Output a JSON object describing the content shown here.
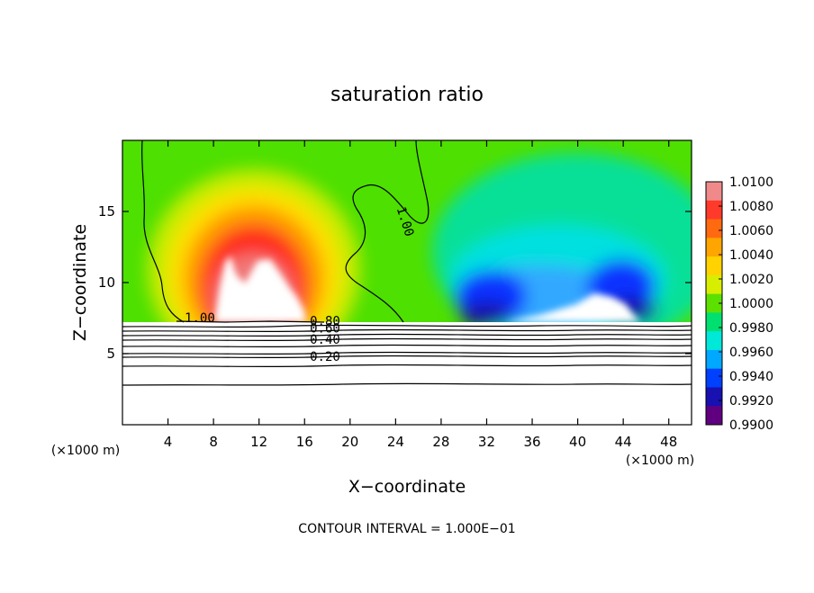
{
  "chart_data": {
    "type": "heatmap",
    "title": "saturation ratio",
    "xlabel": "X−coordinate",
    "ylabel": "Z−coordinate",
    "x_unit_label": "(×1000 m)",
    "y_unit_label": "(×1000 m)",
    "xlim": [
      0,
      50
    ],
    "ylim": [
      0,
      20
    ],
    "x_ticks": [
      4,
      8,
      12,
      16,
      20,
      24,
      28,
      32,
      36,
      40,
      44,
      48
    ],
    "y_ticks": [
      5,
      10,
      15
    ],
    "footer": "CONTOUR INTERVAL = 1.000E−01",
    "colorbar": {
      "labels": [
        "1.0100",
        "1.0080",
        "1.0060",
        "1.0040",
        "1.0020",
        "1.0000",
        "0.9980",
        "0.9960",
        "0.9940",
        "0.9920",
        "0.9900"
      ],
      "min": 0.99,
      "max": 1.01,
      "colors": [
        "#f08a8a",
        "#ff3a2a",
        "#ff6a10",
        "#ffa500",
        "#ffd200",
        "#d8ee00",
        "#5ce000",
        "#00e070",
        "#00e8d8",
        "#00a8ff",
        "#0040ff",
        "#1810b0",
        "#600080"
      ]
    },
    "contour_labels": [
      {
        "text": "1.00",
        "x": 24.5,
        "y": 14.2,
        "angle": 72
      },
      {
        "text": "1.00",
        "x": 6.8,
        "y": 7.2,
        "angle": 0
      },
      {
        "text": "0.80",
        "x": 17.8,
        "y": 7.0,
        "angle": 0
      },
      {
        "text": "0.60",
        "x": 17.8,
        "y": 6.5,
        "angle": 0
      },
      {
        "text": "0.40",
        "x": 17.8,
        "y": 5.7,
        "angle": 0
      },
      {
        "text": "0.20",
        "x": 17.8,
        "y": 4.5,
        "angle": 0
      }
    ],
    "notes": "Saturation ratio field over x 0–50 km, z 0–20 km; supersaturated plume (up to 1.01) near x≈6–20 km, subsaturated (down to 0.99) near x≈28–48 km; below z≈7.2 km shown as line contours 0.20–1.00."
  }
}
